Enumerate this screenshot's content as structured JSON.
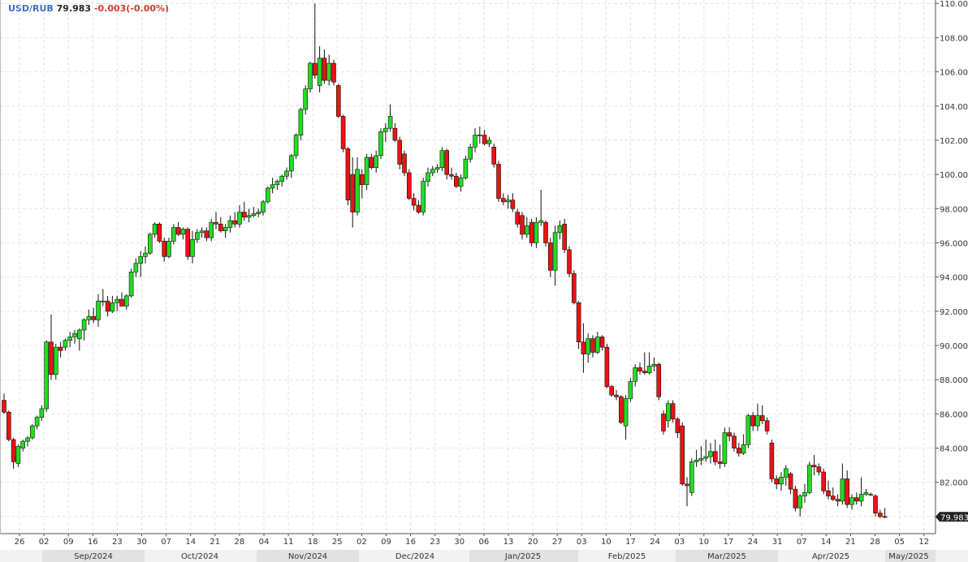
{
  "header": {
    "symbol": "USD/RUB",
    "last": "79.983",
    "change": "-0.003(-0.00%)"
  },
  "colors": {
    "up": "#22dd22",
    "down": "#ee1111",
    "grid": "#e4e4e4",
    "axis": "#555555",
    "last_tag_bg": "#222222",
    "last_tag_fg": "#ffffff",
    "month_band_a": "#f2f2f2",
    "month_band_b": "#e2e2e2",
    "symbol": "#3a6fc4",
    "change": "#d03a2a"
  },
  "chart_data": {
    "type": "candlestick",
    "title": "USD/RUB",
    "ylim": [
      79.0,
      110.2
    ],
    "y_ticks": [
      "80.000",
      "82.000",
      "84.000",
      "86.000",
      "88.000",
      "90.000",
      "92.000",
      "94.000",
      "96.000",
      "98.000",
      "100.000",
      "102.000",
      "104.000",
      "106.000",
      "108.000",
      "110.000"
    ],
    "last_price_label": "79.983",
    "last_price": 79.983,
    "x_day_ticks": [
      "26",
      "02",
      "09",
      "16",
      "23",
      "30",
      "07",
      "14",
      "21",
      "28",
      "04",
      "11",
      "18",
      "25",
      "02",
      "09",
      "16",
      "23",
      "30",
      "06",
      "13",
      "20",
      "27",
      "03",
      "10",
      "17",
      "24",
      "03",
      "10",
      "17",
      "24",
      "31",
      "07",
      "14",
      "21",
      "28",
      "05",
      "12"
    ],
    "x_month_ticks": [
      "Sep/2024",
      "Oct/2024",
      "Nov/2024",
      "Dec/2024",
      "Jan/2025",
      "Feb/2025",
      "Mar/2025",
      "Apr/2025",
      "May/2025"
    ],
    "grid": true,
    "candles": [
      {
        "o": 86.8,
        "h": 87.2,
        "l": 86.0,
        "c": 86.1
      },
      {
        "o": 86.1,
        "h": 86.2,
        "l": 84.4,
        "c": 84.5
      },
      {
        "o": 84.5,
        "h": 84.6,
        "l": 82.8,
        "c": 83.2
      },
      {
        "o": 83.1,
        "h": 84.2,
        "l": 82.9,
        "c": 84.1
      },
      {
        "o": 84.0,
        "h": 84.5,
        "l": 83.8,
        "c": 84.4
      },
      {
        "o": 84.4,
        "h": 84.7,
        "l": 84.1,
        "c": 84.6
      },
      {
        "o": 84.6,
        "h": 85.4,
        "l": 84.5,
        "c": 85.3
      },
      {
        "o": 85.3,
        "h": 85.9,
        "l": 85.1,
        "c": 85.8
      },
      {
        "o": 85.8,
        "h": 86.5,
        "l": 85.6,
        "c": 86.3
      },
      {
        "o": 86.3,
        "h": 90.3,
        "l": 86.1,
        "c": 90.2
      },
      {
        "o": 90.2,
        "h": 91.8,
        "l": 88.0,
        "c": 88.3
      },
      {
        "o": 88.3,
        "h": 90.1,
        "l": 88.0,
        "c": 89.9
      },
      {
        "o": 89.9,
        "h": 90.2,
        "l": 89.3,
        "c": 89.7
      },
      {
        "o": 89.9,
        "h": 90.4,
        "l": 89.7,
        "c": 90.3
      },
      {
        "o": 90.3,
        "h": 90.8,
        "l": 89.9,
        "c": 90.5
      },
      {
        "o": 90.5,
        "h": 90.9,
        "l": 90.1,
        "c": 90.7
      },
      {
        "o": 90.4,
        "h": 91.0,
        "l": 89.7,
        "c": 90.9
      },
      {
        "o": 90.9,
        "h": 91.6,
        "l": 90.3,
        "c": 91.5
      },
      {
        "o": 91.5,
        "h": 92.1,
        "l": 91.2,
        "c": 91.7
      },
      {
        "o": 91.7,
        "h": 92.2,
        "l": 91.3,
        "c": 91.5
      },
      {
        "o": 91.5,
        "h": 93.0,
        "l": 91.1,
        "c": 92.6
      },
      {
        "o": 92.6,
        "h": 93.3,
        "l": 92.3,
        "c": 92.6
      },
      {
        "o": 92.6,
        "h": 92.9,
        "l": 91.7,
        "c": 92.0
      },
      {
        "o": 92.0,
        "h": 92.9,
        "l": 91.9,
        "c": 92.5
      },
      {
        "o": 92.5,
        "h": 92.9,
        "l": 92.0,
        "c": 92.7
      },
      {
        "o": 92.7,
        "h": 93.1,
        "l": 92.4,
        "c": 92.3
      },
      {
        "o": 92.3,
        "h": 93.0,
        "l": 92.1,
        "c": 92.9
      },
      {
        "o": 92.9,
        "h": 94.5,
        "l": 92.8,
        "c": 94.3
      },
      {
        "o": 94.3,
        "h": 95.1,
        "l": 94.0,
        "c": 94.8
      },
      {
        "o": 94.8,
        "h": 95.5,
        "l": 94.0,
        "c": 95.2
      },
      {
        "o": 95.2,
        "h": 95.8,
        "l": 94.8,
        "c": 95.4
      },
      {
        "o": 95.4,
        "h": 96.6,
        "l": 95.3,
        "c": 96.5
      },
      {
        "o": 96.5,
        "h": 97.2,
        "l": 96.3,
        "c": 97.1
      },
      {
        "o": 97.1,
        "h": 97.2,
        "l": 96.0,
        "c": 96.1
      },
      {
        "o": 96.1,
        "h": 96.3,
        "l": 94.9,
        "c": 95.2
      },
      {
        "o": 95.2,
        "h": 96.3,
        "l": 95.1,
        "c": 96.1
      },
      {
        "o": 96.1,
        "h": 97.1,
        "l": 95.9,
        "c": 96.9
      },
      {
        "o": 96.9,
        "h": 97.2,
        "l": 96.4,
        "c": 96.5
      },
      {
        "o": 96.5,
        "h": 96.9,
        "l": 96.2,
        "c": 96.8
      },
      {
        "o": 96.8,
        "h": 96.9,
        "l": 95.0,
        "c": 95.2
      },
      {
        "o": 95.2,
        "h": 96.7,
        "l": 94.8,
        "c": 96.2
      },
      {
        "o": 96.2,
        "h": 96.8,
        "l": 96.0,
        "c": 96.6
      },
      {
        "o": 96.6,
        "h": 96.9,
        "l": 96.3,
        "c": 96.7
      },
      {
        "o": 96.7,
        "h": 96.9,
        "l": 96.1,
        "c": 96.3
      },
      {
        "o": 96.3,
        "h": 97.4,
        "l": 96.1,
        "c": 97.2
      },
      {
        "o": 97.2,
        "h": 97.8,
        "l": 96.8,
        "c": 97.1
      },
      {
        "o": 97.1,
        "h": 97.5,
        "l": 96.6,
        "c": 96.7
      },
      {
        "o": 96.7,
        "h": 97.1,
        "l": 96.3,
        "c": 96.9
      },
      {
        "o": 96.9,
        "h": 97.6,
        "l": 96.6,
        "c": 97.3
      },
      {
        "o": 97.3,
        "h": 97.8,
        "l": 96.9,
        "c": 97.1
      },
      {
        "o": 97.1,
        "h": 98.2,
        "l": 96.9,
        "c": 97.8
      },
      {
        "o": 97.8,
        "h": 98.4,
        "l": 97.3,
        "c": 97.5
      },
      {
        "o": 97.5,
        "h": 98.0,
        "l": 97.2,
        "c": 97.6
      },
      {
        "o": 97.6,
        "h": 98.1,
        "l": 97.5,
        "c": 97.7
      },
      {
        "o": 97.7,
        "h": 98.0,
        "l": 97.5,
        "c": 97.8
      },
      {
        "o": 97.8,
        "h": 98.5,
        "l": 97.6,
        "c": 98.4
      },
      {
        "o": 98.4,
        "h": 99.3,
        "l": 98.3,
        "c": 99.2
      },
      {
        "o": 99.2,
        "h": 99.8,
        "l": 98.9,
        "c": 99.4
      },
      {
        "o": 99.4,
        "h": 99.7,
        "l": 99.1,
        "c": 99.6
      },
      {
        "o": 99.6,
        "h": 100.0,
        "l": 99.3,
        "c": 99.9
      },
      {
        "o": 99.9,
        "h": 100.4,
        "l": 99.7,
        "c": 100.2
      },
      {
        "o": 100.2,
        "h": 101.2,
        "l": 99.8,
        "c": 101.1
      },
      {
        "o": 101.1,
        "h": 102.4,
        "l": 100.9,
        "c": 102.3
      },
      {
        "o": 102.3,
        "h": 103.9,
        "l": 102.0,
        "c": 103.8
      },
      {
        "o": 103.8,
        "h": 105.2,
        "l": 103.5,
        "c": 105.0
      },
      {
        "o": 105.0,
        "h": 106.6,
        "l": 104.8,
        "c": 106.5
      },
      {
        "o": 106.5,
        "h": 110.0,
        "l": 105.6,
        "c": 105.8
      },
      {
        "o": 105.2,
        "h": 107.5,
        "l": 104.8,
        "c": 106.8
      },
      {
        "o": 106.8,
        "h": 107.3,
        "l": 105.3,
        "c": 105.5
      },
      {
        "o": 105.5,
        "h": 107.0,
        "l": 105.2,
        "c": 106.5
      },
      {
        "o": 106.5,
        "h": 106.7,
        "l": 105.2,
        "c": 105.4
      },
      {
        "o": 105.2,
        "h": 105.3,
        "l": 103.3,
        "c": 103.4
      },
      {
        "o": 103.4,
        "h": 103.5,
        "l": 101.3,
        "c": 101.5
      },
      {
        "o": 101.5,
        "h": 101.6,
        "l": 98.2,
        "c": 98.5
      },
      {
        "o": 100.0,
        "h": 101.0,
        "l": 96.9,
        "c": 97.8
      },
      {
        "o": 97.8,
        "h": 101.0,
        "l": 97.6,
        "c": 100.3
      },
      {
        "o": 100.0,
        "h": 100.3,
        "l": 98.6,
        "c": 99.4
      },
      {
        "o": 99.4,
        "h": 101.2,
        "l": 99.1,
        "c": 101.0
      },
      {
        "o": 101.0,
        "h": 101.2,
        "l": 100.3,
        "c": 100.4
      },
      {
        "o": 100.4,
        "h": 101.4,
        "l": 100.1,
        "c": 101.1
      },
      {
        "o": 101.1,
        "h": 102.7,
        "l": 100.9,
        "c": 102.5
      },
      {
        "o": 102.5,
        "h": 103.0,
        "l": 101.9,
        "c": 102.7
      },
      {
        "o": 102.7,
        "h": 104.1,
        "l": 102.5,
        "c": 103.4
      },
      {
        "o": 102.7,
        "h": 103.0,
        "l": 101.9,
        "c": 102.0
      },
      {
        "o": 102.0,
        "h": 102.2,
        "l": 100.3,
        "c": 100.6
      },
      {
        "o": 101.2,
        "h": 101.4,
        "l": 99.9,
        "c": 100.1
      },
      {
        "o": 100.1,
        "h": 100.3,
        "l": 98.5,
        "c": 98.6
      },
      {
        "o": 98.6,
        "h": 98.9,
        "l": 97.9,
        "c": 98.2
      },
      {
        "o": 98.2,
        "h": 98.5,
        "l": 97.7,
        "c": 97.8
      },
      {
        "o": 97.8,
        "h": 99.8,
        "l": 97.6,
        "c": 99.6
      },
      {
        "o": 99.6,
        "h": 100.4,
        "l": 99.3,
        "c": 100.1
      },
      {
        "o": 100.1,
        "h": 100.5,
        "l": 99.9,
        "c": 100.3
      },
      {
        "o": 100.3,
        "h": 100.6,
        "l": 100.1,
        "c": 100.4
      },
      {
        "o": 100.4,
        "h": 101.6,
        "l": 100.2,
        "c": 101.4
      },
      {
        "o": 101.4,
        "h": 101.5,
        "l": 99.7,
        "c": 100.0
      },
      {
        "o": 100.0,
        "h": 100.4,
        "l": 99.7,
        "c": 99.9
      },
      {
        "o": 99.9,
        "h": 100.1,
        "l": 99.2,
        "c": 99.3
      },
      {
        "o": 99.3,
        "h": 100.0,
        "l": 99.0,
        "c": 99.8
      },
      {
        "o": 99.8,
        "h": 101.1,
        "l": 99.7,
        "c": 100.9
      },
      {
        "o": 100.9,
        "h": 101.8,
        "l": 100.7,
        "c": 101.6
      },
      {
        "o": 101.6,
        "h": 102.7,
        "l": 101.3,
        "c": 102.3
      },
      {
        "o": 102.3,
        "h": 102.8,
        "l": 101.8,
        "c": 102.3
      },
      {
        "o": 102.3,
        "h": 102.6,
        "l": 101.7,
        "c": 101.8
      },
      {
        "o": 101.8,
        "h": 102.2,
        "l": 101.6,
        "c": 102.0
      },
      {
        "o": 101.6,
        "h": 101.8,
        "l": 100.4,
        "c": 100.6
      },
      {
        "o": 100.6,
        "h": 100.8,
        "l": 98.4,
        "c": 98.6
      },
      {
        "o": 98.6,
        "h": 98.9,
        "l": 98.2,
        "c": 98.4
      },
      {
        "o": 98.4,
        "h": 98.8,
        "l": 98.0,
        "c": 98.5
      },
      {
        "o": 98.5,
        "h": 98.9,
        "l": 97.8,
        "c": 98.0
      },
      {
        "o": 97.8,
        "h": 98.0,
        "l": 96.9,
        "c": 97.1
      },
      {
        "o": 97.6,
        "h": 97.8,
        "l": 96.2,
        "c": 96.5
      },
      {
        "o": 96.5,
        "h": 97.5,
        "l": 96.3,
        "c": 97.0
      },
      {
        "o": 97.2,
        "h": 97.4,
        "l": 95.8,
        "c": 96.0
      },
      {
        "o": 96.0,
        "h": 97.5,
        "l": 95.7,
        "c": 97.2
      },
      {
        "o": 97.2,
        "h": 99.1,
        "l": 97.0,
        "c": 97.3
      },
      {
        "o": 97.2,
        "h": 97.3,
        "l": 95.8,
        "c": 96.0
      },
      {
        "o": 96.0,
        "h": 96.3,
        "l": 94.0,
        "c": 94.4
      },
      {
        "o": 94.4,
        "h": 97.0,
        "l": 93.5,
        "c": 96.6
      },
      {
        "o": 96.6,
        "h": 97.3,
        "l": 96.2,
        "c": 97.0
      },
      {
        "o": 97.1,
        "h": 97.4,
        "l": 95.4,
        "c": 95.6
      },
      {
        "o": 95.6,
        "h": 95.8,
        "l": 94.0,
        "c": 94.2
      },
      {
        "o": 94.2,
        "h": 94.4,
        "l": 92.4,
        "c": 92.5
      },
      {
        "o": 92.5,
        "h": 92.6,
        "l": 89.8,
        "c": 90.2
      },
      {
        "o": 90.2,
        "h": 91.3,
        "l": 88.4,
        "c": 89.5
      },
      {
        "o": 89.5,
        "h": 90.7,
        "l": 89.0,
        "c": 90.4
      },
      {
        "o": 90.4,
        "h": 90.6,
        "l": 89.3,
        "c": 89.6
      },
      {
        "o": 89.6,
        "h": 90.8,
        "l": 89.5,
        "c": 90.5
      },
      {
        "o": 90.5,
        "h": 90.6,
        "l": 89.7,
        "c": 89.9
      },
      {
        "o": 89.9,
        "h": 90.1,
        "l": 87.5,
        "c": 87.6
      },
      {
        "o": 87.6,
        "h": 87.7,
        "l": 87.0,
        "c": 87.1
      },
      {
        "o": 87.1,
        "h": 87.4,
        "l": 86.8,
        "c": 87.0
      },
      {
        "o": 87.0,
        "h": 87.1,
        "l": 85.4,
        "c": 85.5
      },
      {
        "o": 85.3,
        "h": 87.1,
        "l": 84.5,
        "c": 86.9
      },
      {
        "o": 86.9,
        "h": 88.1,
        "l": 86.7,
        "c": 87.9
      },
      {
        "o": 87.9,
        "h": 88.9,
        "l": 87.6,
        "c": 88.7
      },
      {
        "o": 88.7,
        "h": 89.0,
        "l": 88.3,
        "c": 88.5
      },
      {
        "o": 88.5,
        "h": 89.6,
        "l": 88.3,
        "c": 88.4
      },
      {
        "o": 88.4,
        "h": 89.6,
        "l": 88.3,
        "c": 88.8
      },
      {
        "o": 88.8,
        "h": 89.3,
        "l": 88.5,
        "c": 88.9
      },
      {
        "o": 88.9,
        "h": 89.0,
        "l": 86.8,
        "c": 87.0
      },
      {
        "o": 86.0,
        "h": 86.2,
        "l": 84.8,
        "c": 85.0
      },
      {
        "o": 85.6,
        "h": 86.8,
        "l": 85.2,
        "c": 86.6
      },
      {
        "o": 86.6,
        "h": 86.8,
        "l": 85.5,
        "c": 85.7
      },
      {
        "o": 85.7,
        "h": 85.8,
        "l": 84.6,
        "c": 84.9
      },
      {
        "o": 85.3,
        "h": 85.5,
        "l": 81.8,
        "c": 81.9
      },
      {
        "o": 81.9,
        "h": 82.3,
        "l": 80.6,
        "c": 81.8
      },
      {
        "o": 81.4,
        "h": 83.4,
        "l": 81.2,
        "c": 83.2
      },
      {
        "o": 83.2,
        "h": 83.9,
        "l": 82.9,
        "c": 83.3
      },
      {
        "o": 83.3,
        "h": 84.1,
        "l": 83.0,
        "c": 83.4
      },
      {
        "o": 83.4,
        "h": 84.5,
        "l": 83.2,
        "c": 83.5
      },
      {
        "o": 83.5,
        "h": 84.3,
        "l": 83.1,
        "c": 83.8
      },
      {
        "o": 83.8,
        "h": 84.5,
        "l": 83.0,
        "c": 83.2
      },
      {
        "o": 83.2,
        "h": 84.2,
        "l": 82.8,
        "c": 83.1
      },
      {
        "o": 83.1,
        "h": 85.2,
        "l": 82.9,
        "c": 84.9
      },
      {
        "o": 84.9,
        "h": 85.2,
        "l": 84.4,
        "c": 84.7
      },
      {
        "o": 84.7,
        "h": 84.9,
        "l": 83.8,
        "c": 84.0
      },
      {
        "o": 84.0,
        "h": 84.3,
        "l": 83.5,
        "c": 83.7
      },
      {
        "o": 83.7,
        "h": 84.8,
        "l": 83.6,
        "c": 84.2
      },
      {
        "o": 84.2,
        "h": 86.0,
        "l": 84.0,
        "c": 85.9
      },
      {
        "o": 85.9,
        "h": 86.1,
        "l": 85.0,
        "c": 85.3
      },
      {
        "o": 85.3,
        "h": 86.6,
        "l": 85.0,
        "c": 85.9
      },
      {
        "o": 85.9,
        "h": 86.5,
        "l": 85.4,
        "c": 85.6
      },
      {
        "o": 85.6,
        "h": 85.8,
        "l": 84.8,
        "c": 85.0
      },
      {
        "o": 84.3,
        "h": 84.5,
        "l": 82.0,
        "c": 82.2
      },
      {
        "o": 82.2,
        "h": 82.4,
        "l": 81.6,
        "c": 81.9
      },
      {
        "o": 81.9,
        "h": 82.6,
        "l": 81.5,
        "c": 82.3
      },
      {
        "o": 82.3,
        "h": 83.0,
        "l": 81.8,
        "c": 82.8
      },
      {
        "o": 82.5,
        "h": 82.6,
        "l": 81.3,
        "c": 81.6
      },
      {
        "o": 81.6,
        "h": 81.8,
        "l": 80.3,
        "c": 80.5
      },
      {
        "o": 80.5,
        "h": 81.3,
        "l": 80.0,
        "c": 81.2
      },
      {
        "o": 81.2,
        "h": 81.9,
        "l": 80.8,
        "c": 81.4
      },
      {
        "o": 81.4,
        "h": 83.2,
        "l": 81.3,
        "c": 83.0
      },
      {
        "o": 83.0,
        "h": 83.6,
        "l": 82.4,
        "c": 82.9
      },
      {
        "o": 82.9,
        "h": 83.1,
        "l": 82.4,
        "c": 82.6
      },
      {
        "o": 82.6,
        "h": 82.8,
        "l": 81.3,
        "c": 81.5
      },
      {
        "o": 81.5,
        "h": 82.1,
        "l": 81.0,
        "c": 81.2
      },
      {
        "o": 81.2,
        "h": 81.7,
        "l": 80.9,
        "c": 81.0
      },
      {
        "o": 81.0,
        "h": 81.3,
        "l": 80.6,
        "c": 80.9
      },
      {
        "o": 80.9,
        "h": 83.1,
        "l": 80.7,
        "c": 82.2
      },
      {
        "o": 82.2,
        "h": 82.7,
        "l": 80.5,
        "c": 80.7
      },
      {
        "o": 80.7,
        "h": 81.3,
        "l": 80.4,
        "c": 81.1
      },
      {
        "o": 81.1,
        "h": 81.4,
        "l": 80.7,
        "c": 80.9
      },
      {
        "o": 80.9,
        "h": 82.3,
        "l": 80.6,
        "c": 81.3
      },
      {
        "o": 81.3,
        "h": 81.6,
        "l": 81.2,
        "c": 81.4
      },
      {
        "o": 81.3,
        "h": 81.4,
        "l": 81.2,
        "c": 81.3
      },
      {
        "o": 81.2,
        "h": 81.3,
        "l": 80.0,
        "c": 80.2
      },
      {
        "o": 80.2,
        "h": 80.4,
        "l": 79.9,
        "c": 80.0
      },
      {
        "o": 80.0,
        "h": 80.5,
        "l": 79.9,
        "c": 79.98
      }
    ]
  }
}
